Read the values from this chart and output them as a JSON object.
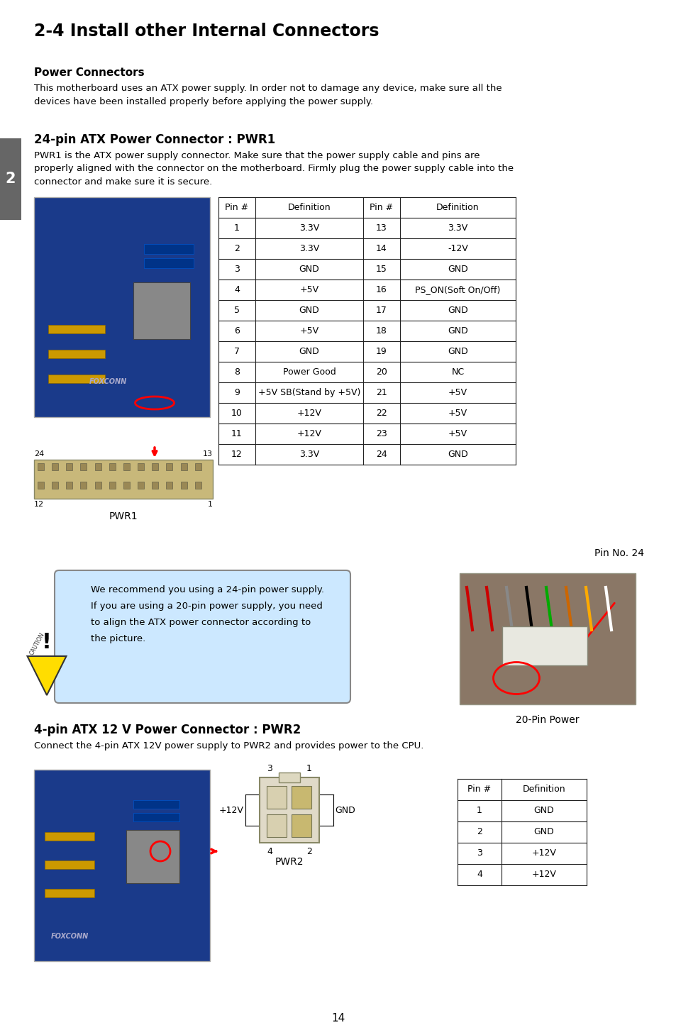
{
  "title": "2-4 Install other Internal Connectors",
  "bg_color": "#ffffff",
  "section1_title": "Power Connectors",
  "section1_body": "This motherboard uses an ATX power supply. In order not to damage any device, make sure all the\ndevices have been installed properly before applying the power supply.",
  "section2_title": "24-pin ATX Power Connector : PWR1",
  "section2_body": "PWR1 is the ATX power supply connector. Make sure that the power supply cable and pins are\nproperly aligned with the connector on the motherboard. Firmly plug the power supply cable into the\nconnector and make sure it is secure.",
  "table1_headers": [
    "Pin #",
    "Definition",
    "Pin #",
    "Definition"
  ],
  "table1_data": [
    [
      "1",
      "3.3V",
      "13",
      "3.3V"
    ],
    [
      "2",
      "3.3V",
      "14",
      "-12V"
    ],
    [
      "3",
      "GND",
      "15",
      "GND"
    ],
    [
      "4",
      "+5V",
      "16",
      "PS_ON(Soft On/Off)"
    ],
    [
      "5",
      "GND",
      "17",
      "GND"
    ],
    [
      "6",
      "+5V",
      "18",
      "GND"
    ],
    [
      "7",
      "GND",
      "19",
      "GND"
    ],
    [
      "8",
      "Power Good",
      "20",
      "NC"
    ],
    [
      "9",
      "+5V SB(Stand by +5V)",
      "21",
      "+5V"
    ],
    [
      "10",
      "+12V",
      "22",
      "+5V"
    ],
    [
      "11",
      "+12V",
      "23",
      "+5V"
    ],
    [
      "12",
      "3.3V",
      "24",
      "GND"
    ]
  ],
  "caution_text": "We recommend you using a 24-pin power supply.\nIf you are using a 20-pin power supply, you need\nto align the ATX power connector according to\nthe picture.",
  "pin_no_label": "Pin No. 24",
  "power_20pin_label": "20-Pin Power",
  "section3_title": "4-pin ATX 12 V Power Connector : PWR2",
  "section3_body": "Connect the 4-pin ATX 12V power supply to PWR2 and provides power to the CPU.",
  "table2_headers": [
    "Pin #",
    "Definition"
  ],
  "table2_data": [
    [
      "1",
      "GND"
    ],
    [
      "2",
      "GND"
    ],
    [
      "3",
      "+12V"
    ],
    [
      "4",
      "+12V"
    ]
  ],
  "pwr2_label": "PWR2",
  "pwr1_label": "PWR1",
  "page_number": "14",
  "sidebar_number": "2",
  "sidebar_color": "#666666",
  "table_border_color": "#000000",
  "caution_bg": "#cce8ff",
  "caution_border": "#888888",
  "triangle_fill": "#ffdd00",
  "triangle_border": "#333333"
}
